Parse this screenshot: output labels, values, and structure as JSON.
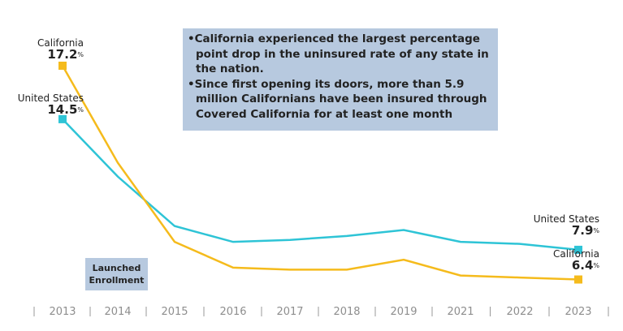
{
  "chart_data": {
    "type": "line",
    "categories": [
      "2013",
      "2014",
      "2015",
      "2016",
      "2017",
      "2018",
      "2019",
      "2021",
      "2022",
      "2023"
    ],
    "series": [
      {
        "name": "United States",
        "color": "#2ec4d6",
        "values": [
          14.5,
          11.6,
          9.1,
          8.3,
          8.4,
          8.6,
          8.9,
          8.3,
          8.2,
          7.9
        ]
      },
      {
        "name": "California",
        "color": "#f5bb1c",
        "values": [
          17.2,
          12.3,
          8.3,
          7.0,
          6.9,
          6.9,
          7.4,
          6.6,
          6.5,
          6.4
        ]
      }
    ],
    "ylim": [
      5,
      18
    ],
    "grid": false,
    "labels": {
      "us_start": {
        "name": "United States",
        "value": "14.5",
        "unit": "%"
      },
      "ca_start": {
        "name": "California",
        "value": "17.2",
        "unit": "%"
      },
      "us_end": {
        "name": "United States",
        "value": "7.9",
        "unit": "%"
      },
      "ca_end": {
        "name": "California",
        "value": "6.4",
        "unit": "%"
      }
    },
    "annotations": {
      "note_bullets": [
        "•California experienced the largest percentage point drop in the uninsured rate of any state in the nation.",
        "•Since first opening its doors, more than 5.9 million Californians have been insured through Covered California for at least one month"
      ],
      "launch_label": "Launched Enrollment"
    }
  }
}
